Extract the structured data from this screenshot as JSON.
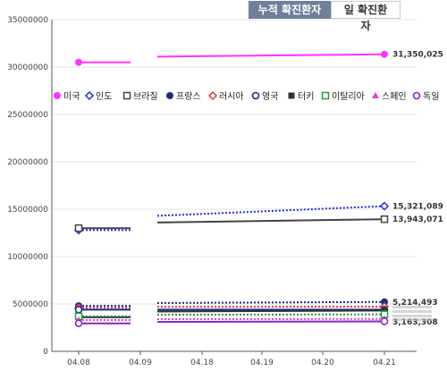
{
  "tabs": [
    {
      "label": "누적 확진환자",
      "active": true
    },
    {
      "label": "일 확진환자",
      "active": false
    }
  ],
  "chart_data": {
    "type": "line",
    "x": [
      "04.08",
      "04.09",
      "04.18",
      "04.19",
      "04.20",
      "04.21"
    ],
    "ylim": [
      0,
      35000000
    ],
    "yticks": [
      0,
      5000000,
      10000000,
      15000000,
      20000000,
      25000000,
      30000000,
      35000000
    ],
    "ytick_labels": [
      "0",
      "5000000",
      "10000000",
      "15000000",
      "20000000",
      "25000000",
      "30000000",
      "35000000"
    ],
    "grid": true,
    "legend_position": "top",
    "series": [
      {
        "name": "미국",
        "color": "#ff33ff",
        "marker": "circle-filled",
        "dash": "solid",
        "start": 30500000,
        "mid": 31100000,
        "end": 31350025,
        "end_label": "31,350,025"
      },
      {
        "name": "인도",
        "color": "#1f2ed6",
        "marker": "diamond-open",
        "dash": "dot",
        "start": 12800000,
        "mid": 14300000,
        "end": 15321089,
        "end_label": "15,321,089"
      },
      {
        "name": "브라질",
        "color": "#444444",
        "marker": "square-open",
        "dash": "solid",
        "start": 13000000,
        "mid": 13600000,
        "end": 13943071,
        "end_label": "13,943,071"
      },
      {
        "name": "프랑스",
        "color": "#1a2b8c",
        "marker": "circle-filled",
        "dash": "dot",
        "start": 4800000,
        "mid": 5100000,
        "end": 5214493,
        "end_label": "5,214,493"
      },
      {
        "name": "러시아",
        "color": "#e23b3b",
        "marker": "diamond-open",
        "dash": "dot",
        "start": 4600000,
        "mid": 4700000,
        "end": 4723600,
        "end_label": ""
      },
      {
        "name": "영국",
        "color": "#1a2b8c",
        "marker": "circle-open",
        "dash": "solid",
        "start": 4400000,
        "mid": 4400000,
        "end": 4400000,
        "end_label": ""
      },
      {
        "name": "터키",
        "color": "#333333",
        "marker": "square-filled",
        "dash": "solid",
        "start": 3600000,
        "mid": 4200000,
        "end": 4300000,
        "end_label": ""
      },
      {
        "name": "이탈리아",
        "color": "#2a9a3a",
        "marker": "square-open",
        "dash": "dot",
        "start": 3700000,
        "mid": 3860000,
        "end": 3900000,
        "end_label": ""
      },
      {
        "name": "스페인",
        "color": "#e040e0",
        "marker": "triangle-filled",
        "dash": "dot",
        "start": 3300000,
        "mid": 3400000,
        "end": 3420000,
        "end_label": ""
      },
      {
        "name": "독일",
        "color": "#8a22c9",
        "marker": "circle-open",
        "dash": "solid",
        "start": 2950000,
        "mid": 3100000,
        "end": 3163308,
        "end_label": "3,163,308"
      }
    ]
  }
}
